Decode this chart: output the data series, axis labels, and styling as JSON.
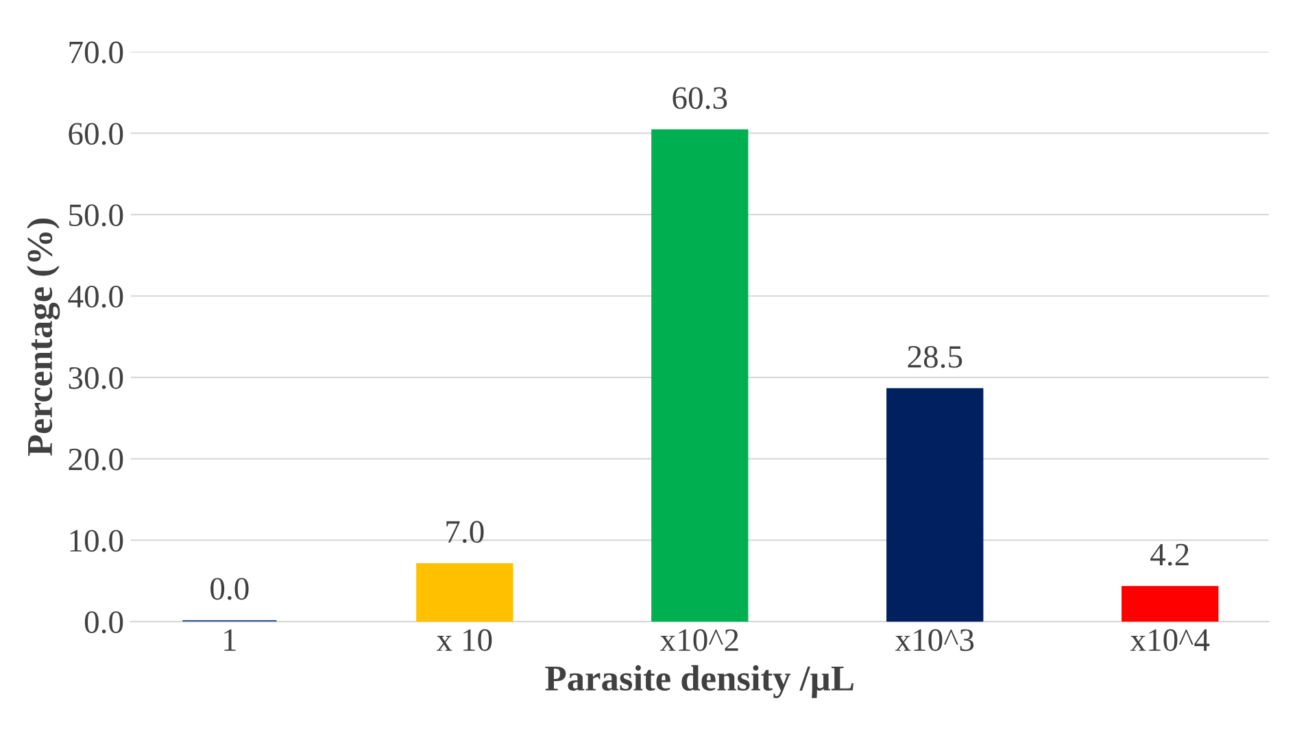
{
  "chart_data": {
    "type": "bar",
    "xlabel": "Parasite density /µL",
    "ylabel": "Percentage (%)",
    "categories": [
      "1",
      "x 10",
      "x10^2",
      "x10^3",
      "x10^4"
    ],
    "values": [
      0.0,
      7.0,
      60.3,
      28.5,
      4.2
    ],
    "value_labels": [
      "0.0",
      "7.0",
      "60.3",
      "28.5",
      "4.2"
    ],
    "colors": [
      "#3a5f94",
      "#ffc000",
      "#00b050",
      "#002060",
      "#ff0000"
    ],
    "ylim": [
      0,
      70
    ],
    "yticks": [
      {
        "value": 0,
        "label": "0.0"
      },
      {
        "value": 10,
        "label": "10.0"
      },
      {
        "value": 20,
        "label": "20.0"
      },
      {
        "value": 30,
        "label": "30.0"
      },
      {
        "value": 40,
        "label": "40.0"
      },
      {
        "value": 50,
        "label": "50.0"
      },
      {
        "value": 60,
        "label": "60.0"
      },
      {
        "value": 70,
        "label": "70.0"
      }
    ],
    "grid": "y",
    "legend": false
  }
}
